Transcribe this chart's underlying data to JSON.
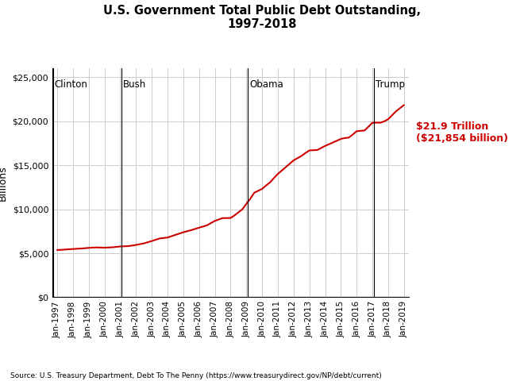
{
  "title": "U.S. Government Total Public Debt Outstanding,\n1997-2018",
  "ylabel": "Billions",
  "source": "Source: U.S. Treasury Department, Debt To The Penny (https://www.treasurydirect.gov/NP/debt/current)",
  "line_color": "#cc0000",
  "background_color": "#ffffff",
  "grid_color": "#cccccc",
  "ylim": [
    0,
    26000
  ],
  "yticks": [
    0,
    5000,
    10000,
    15000,
    20000,
    25000
  ],
  "ytick_labels": [
    "$0",
    "$5,000",
    "$10,000",
    "$15,000",
    "$20,000",
    "$25,000"
  ],
  "president_lines": [
    {
      "x": 2001.083,
      "label": "Bush"
    },
    {
      "x": 2009.083,
      "label": "Obama"
    },
    {
      "x": 2017.083,
      "label": "Trump"
    }
  ],
  "clinton_label": "Clinton",
  "annotation_text": "$21.9 Trillion\n($21,854 billion)",
  "annotation_color": "#cc0000",
  "xlim_left": 1996.7,
  "xlim_right": 2019.3,
  "debt_data": [
    [
      1997.0,
      5369
    ],
    [
      1997.25,
      5385
    ],
    [
      1997.5,
      5423
    ],
    [
      1997.75,
      5450
    ],
    [
      1998.0,
      5478
    ],
    [
      1998.25,
      5510
    ],
    [
      1998.5,
      5530
    ],
    [
      1998.75,
      5570
    ],
    [
      1999.0,
      5606
    ],
    [
      1999.25,
      5640
    ],
    [
      1999.5,
      5657
    ],
    [
      1999.75,
      5640
    ],
    [
      2000.0,
      5628
    ],
    [
      2000.25,
      5650
    ],
    [
      2000.5,
      5674
    ],
    [
      2000.75,
      5720
    ],
    [
      2001.0,
      5770
    ],
    [
      2001.25,
      5790
    ],
    [
      2001.5,
      5807
    ],
    [
      2001.75,
      5870
    ],
    [
      2002.0,
      5943
    ],
    [
      2002.25,
      6030
    ],
    [
      2002.5,
      6117
    ],
    [
      2002.75,
      6250
    ],
    [
      2003.0,
      6383
    ],
    [
      2003.25,
      6530
    ],
    [
      2003.5,
      6678
    ],
    [
      2003.75,
      6730
    ],
    [
      2004.0,
      6783
    ],
    [
      2004.25,
      6935
    ],
    [
      2004.5,
      7086
    ],
    [
      2004.75,
      7230
    ],
    [
      2005.0,
      7379
    ],
    [
      2005.25,
      7500
    ],
    [
      2005.5,
      7625
    ],
    [
      2005.75,
      7760
    ],
    [
      2006.0,
      7905
    ],
    [
      2006.25,
      8040
    ],
    [
      2006.5,
      8170
    ],
    [
      2006.75,
      8420
    ],
    [
      2007.0,
      8677
    ],
    [
      2007.25,
      8835
    ],
    [
      2007.5,
      8994
    ],
    [
      2007.75,
      9000
    ],
    [
      2008.0,
      9007
    ],
    [
      2008.25,
      9300
    ],
    [
      2008.5,
      9654
    ],
    [
      2008.75,
      10000
    ],
    [
      2009.0,
      10617
    ],
    [
      2009.25,
      11200
    ],
    [
      2009.5,
      11877
    ],
    [
      2009.75,
      12100
    ],
    [
      2010.0,
      12311
    ],
    [
      2010.25,
      12700
    ],
    [
      2010.5,
      13050
    ],
    [
      2010.75,
      13550
    ],
    [
      2011.0,
      14025
    ],
    [
      2011.25,
      14400
    ],
    [
      2011.5,
      14790
    ],
    [
      2011.75,
      15170
    ],
    [
      2012.0,
      15566
    ],
    [
      2012.25,
      15820
    ],
    [
      2012.5,
      16066
    ],
    [
      2012.75,
      16400
    ],
    [
      2013.0,
      16687
    ],
    [
      2013.25,
      16720
    ],
    [
      2013.5,
      16738
    ],
    [
      2013.75,
      16970
    ],
    [
      2014.0,
      17212
    ],
    [
      2014.25,
      17400
    ],
    [
      2014.5,
      17602
    ],
    [
      2014.75,
      17800
    ],
    [
      2015.0,
      18006
    ],
    [
      2015.25,
      18100
    ],
    [
      2015.5,
      18151
    ],
    [
      2015.75,
      18500
    ],
    [
      2016.0,
      18880
    ],
    [
      2016.25,
      18920
    ],
    [
      2016.5,
      18960
    ],
    [
      2016.75,
      19400
    ],
    [
      2017.0,
      19846
    ],
    [
      2017.25,
      19850
    ],
    [
      2017.5,
      19845
    ],
    [
      2017.75,
      20000
    ],
    [
      2018.0,
      20245
    ],
    [
      2018.25,
      20700
    ],
    [
      2018.5,
      21154
    ],
    [
      2018.75,
      21500
    ],
    [
      2019.0,
      21854
    ]
  ]
}
